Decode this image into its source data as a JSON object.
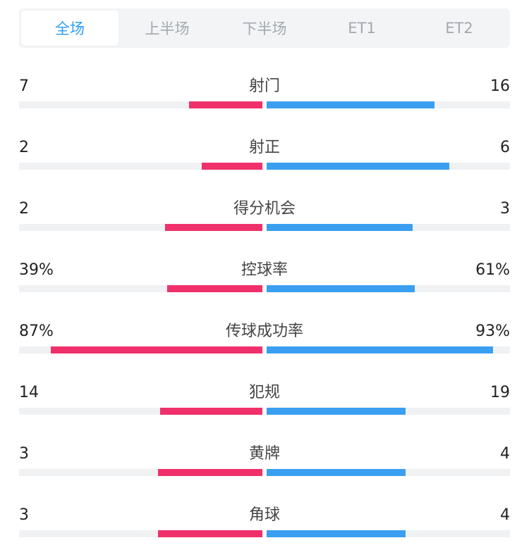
{
  "colors": {
    "home_bar": "#f0306b",
    "away_bar": "#3a9ff0",
    "active_tab": "#2a9df4",
    "inactive_tab": "#a3a8b0"
  },
  "tabs": [
    {
      "label": "全场",
      "active": true
    },
    {
      "label": "上半场",
      "active": false
    },
    {
      "label": "下半场",
      "active": false
    },
    {
      "label": "ET1",
      "active": false
    },
    {
      "label": "ET2",
      "active": false
    }
  ],
  "stats": [
    {
      "label": "射门",
      "home": "7",
      "away": "16",
      "home_fill": 0.3,
      "away_fill": 0.69
    },
    {
      "label": "射正",
      "home": "2",
      "away": "6",
      "home_fill": 0.25,
      "away_fill": 0.75
    },
    {
      "label": "得分机会",
      "home": "2",
      "away": "3",
      "home_fill": 0.4,
      "away_fill": 0.6
    },
    {
      "label": "控球率",
      "home": "39%",
      "away": "61%",
      "home_fill": 0.39,
      "away_fill": 0.61
    },
    {
      "label": "传球成功率",
      "home": "87%",
      "away": "93%",
      "home_fill": 0.87,
      "away_fill": 0.93
    },
    {
      "label": "犯规",
      "home": "14",
      "away": "19",
      "home_fill": 0.42,
      "away_fill": 0.57
    },
    {
      "label": "黄牌",
      "home": "3",
      "away": "4",
      "home_fill": 0.43,
      "away_fill": 0.57
    },
    {
      "label": "角球",
      "home": "3",
      "away": "4",
      "home_fill": 0.43,
      "away_fill": 0.57
    }
  ]
}
